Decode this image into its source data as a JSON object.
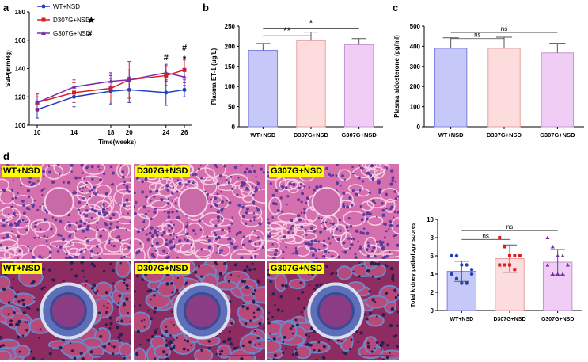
{
  "panels": {
    "a": "a",
    "b": "b",
    "c": "c",
    "d": "d"
  },
  "colors": {
    "wt": "#1f3fbf",
    "d307g": "#e01b1b",
    "g307g": "#7a2ca8",
    "bar_wt": "#c6c8f7",
    "bar_d307g": "#fcdcdc",
    "bar_g307g": "#efcdf5",
    "he_bg": "#d66fae",
    "mt_bg": "#8e2c62"
  },
  "chart_data": [
    {
      "id": "a",
      "type": "line",
      "title": "",
      "xlabel": "Time(weeks)",
      "ylabel": "SBP(mmHg)",
      "x": [
        10,
        14,
        18,
        20,
        24,
        26
      ],
      "xticks": [
        "10",
        "14",
        "18",
        "20",
        "24",
        "26"
      ],
      "ylim": [
        100,
        180
      ],
      "yticks": [
        "100",
        "120",
        "140",
        "160",
        "180"
      ],
      "series": [
        {
          "name": "WT+NSD",
          "marker_sym": "",
          "values": [
            111,
            120,
            124,
            125,
            123,
            125
          ],
          "errors": [
            6,
            7,
            9,
            9,
            9,
            5
          ]
        },
        {
          "name": "D307G+NSD",
          "marker_sym": "★",
          "values": [
            116,
            123,
            126,
            132,
            135,
            139
          ],
          "errors": [
            6,
            7,
            9,
            13,
            7,
            7
          ]
        },
        {
          "name": "G307G+NSD",
          "marker_sym": "#",
          "values": [
            116,
            127,
            131,
            132,
            137,
            134
          ],
          "errors": [
            4,
            5,
            6,
            7,
            6,
            6
          ]
        }
      ],
      "annotations": [
        {
          "x": 24,
          "text": "#",
          "y": 148
        },
        {
          "x": 26,
          "text": "*",
          "y": 147
        },
        {
          "x": 26,
          "text": "#",
          "y": 155
        }
      ]
    },
    {
      "id": "b",
      "type": "bar",
      "ylabel": "Plasma ET-1 (ug/L)",
      "categories": [
        "WT+NSD",
        "D307G+NSD",
        "G307G+NSD"
      ],
      "values": [
        190,
        214,
        204
      ],
      "errors": [
        17,
        21,
        15
      ],
      "ylim": [
        0,
        250
      ],
      "yticks": [
        "0",
        "50",
        "100",
        "150",
        "200",
        "250"
      ],
      "significance": [
        {
          "from": 0,
          "to": 2,
          "label": "*",
          "y": 245
        },
        {
          "from": 0,
          "to": 1,
          "label": "**",
          "y": 226
        }
      ]
    },
    {
      "id": "c",
      "type": "bar",
      "ylabel": "Plasma aldosterone (pg/ml)",
      "categories": [
        "WT+NSD",
        "D307G+NSD",
        "G307G+NSD"
      ],
      "values": [
        390,
        390,
        367
      ],
      "errors": [
        52,
        55,
        48
      ],
      "ylim": [
        0,
        500
      ],
      "yticks": [
        "0",
        "100",
        "200",
        "300",
        "400",
        "500"
      ],
      "significance": [
        {
          "from": 0,
          "to": 2,
          "label": "ns",
          "y": 468
        },
        {
          "from": 0,
          "to": 1,
          "label": "ns",
          "y": 438
        }
      ]
    },
    {
      "id": "d",
      "type": "bar",
      "ylabel": "Total kidney pathology scores",
      "categories": [
        "WT+NSD",
        "D307G+NSD",
        "G307G+NSD"
      ],
      "values": [
        4.3,
        5.7,
        5.3
      ],
      "errors": [
        1.1,
        1.5,
        1.4
      ],
      "ylim": [
        0,
        10
      ],
      "yticks": [
        "0",
        "2",
        "4",
        "6",
        "8",
        "10"
      ],
      "points": [
        [
          6,
          6,
          5,
          5,
          4,
          4,
          3.5,
          3,
          3,
          4.5
        ],
        [
          8,
          7,
          6,
          6,
          6,
          5,
          5,
          5,
          4.5,
          6
        ],
        [
          8,
          7,
          6,
          6,
          5,
          5,
          4,
          4,
          4,
          5
        ]
      ],
      "significance": [
        {
          "from": 0,
          "to": 2,
          "label": "ns",
          "y": 8.8
        },
        {
          "from": 0,
          "to": 1,
          "label": "ns",
          "y": 7.8
        }
      ]
    }
  ],
  "micrographs": {
    "he_row": [
      {
        "label": "WT+NSD"
      },
      {
        "label": "D307G+NSD"
      },
      {
        "label": "G307G+NSD"
      }
    ],
    "mt_row": [
      {
        "label": "WT+NSD"
      },
      {
        "label": "D307G+NSD"
      },
      {
        "label": "G307G+NSD"
      }
    ]
  }
}
